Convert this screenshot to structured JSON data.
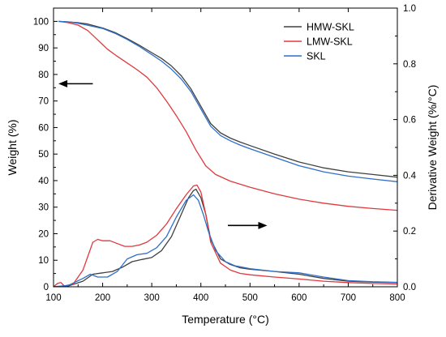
{
  "chart_data": {
    "type": "line",
    "title": "",
    "xlabel": "Temperature (°C)",
    "ylabel": "Weight (%)",
    "y2label": "Derivative Weight (%/°C)",
    "xlim": [
      100,
      800
    ],
    "ylim": [
      0,
      105
    ],
    "y2lim": [
      0,
      1.0
    ],
    "xticks": [
      100,
      200,
      300,
      400,
      500,
      600,
      700,
      800
    ],
    "yticks": [
      0,
      10,
      20,
      30,
      40,
      50,
      60,
      70,
      80,
      90,
      100
    ],
    "y2ticks": [
      0.0,
      0.2,
      0.4,
      0.6,
      0.8,
      1.0
    ],
    "xtick_labels": [
      "100",
      "200",
      "300",
      "400",
      "500",
      "600",
      "700",
      "800"
    ],
    "ytick_labels": [
      "0",
      "10",
      "20",
      "30",
      "40",
      "50",
      "60",
      "70",
      "80",
      "90",
      "100"
    ],
    "y2tick_labels": [
      "0.0",
      "0.2",
      "0.4",
      "0.6",
      "0.8",
      "1.0"
    ],
    "grid": false,
    "legend_position": "top-right",
    "legend": [
      {
        "name": "HMW-SKL",
        "color": "#404040"
      },
      {
        "name": "LMW-SKL",
        "color": "#e0393e"
      },
      {
        "name": "SKL",
        "color": "#2f6fc9"
      }
    ],
    "annotations": [
      {
        "type": "arrow",
        "direction": "left",
        "meaning": "weight curves read on left axis",
        "from": [
          180,
          76.5
        ],
        "to": [
          110,
          76.5
        ]
      },
      {
        "type": "arrow",
        "direction": "right",
        "meaning": "derivative curves read on right axis",
        "from": [
          455,
          0.22
        ],
        "to": [
          535,
          0.22
        ]
      }
    ],
    "series": [
      {
        "name": "HMW-SKL",
        "kind": "weight",
        "axis": "left",
        "color": "#404040",
        "x": [
          110,
          130,
          150,
          170,
          200,
          225,
          250,
          275,
          300,
          320,
          340,
          360,
          380,
          400,
          420,
          440,
          460,
          480,
          500,
          550,
          600,
          650,
          700,
          750,
          800
        ],
        "y": [
          100,
          99.8,
          99.5,
          99,
          97.5,
          95.8,
          93.5,
          91,
          88.2,
          86,
          83.2,
          79.5,
          74.5,
          68,
          61.5,
          58,
          56,
          54.5,
          53.2,
          50,
          47,
          44.8,
          43.3,
          42.3,
          41.3
        ]
      },
      {
        "name": "LMW-SKL",
        "kind": "weight",
        "axis": "left",
        "color": "#e0393e",
        "x": [
          110,
          130,
          150,
          170,
          190,
          210,
          230,
          250,
          270,
          290,
          310,
          330,
          350,
          370,
          390,
          410,
          430,
          460,
          500,
          550,
          600,
          650,
          700,
          750,
          800
        ],
        "y": [
          100,
          99.5,
          98.6,
          96.5,
          93,
          89.5,
          86.8,
          84.3,
          81.8,
          79,
          75,
          70,
          64.5,
          58.5,
          51.5,
          45.5,
          42.3,
          39.8,
          37.5,
          35,
          33,
          31.5,
          30.3,
          29.5,
          28.8
        ]
      },
      {
        "name": "SKL",
        "kind": "weight",
        "axis": "left",
        "color": "#2f6fc9",
        "x": [
          110,
          130,
          150,
          170,
          200,
          225,
          250,
          275,
          300,
          320,
          340,
          360,
          380,
          400,
          420,
          440,
          460,
          480,
          500,
          550,
          600,
          650,
          700,
          750,
          800
        ],
        "y": [
          100,
          99.8,
          99.3,
          98.5,
          97.3,
          95.5,
          93.2,
          90.5,
          87.5,
          85,
          82,
          78.3,
          73.5,
          67,
          60.5,
          57,
          55,
          53.4,
          52,
          48.8,
          45.6,
          43.3,
          41.7,
          40.6,
          39.6
        ]
      },
      {
        "name": "HMW-SKL",
        "kind": "derivative",
        "axis": "right",
        "color": "#404040",
        "x": [
          100,
          130,
          160,
          180,
          200,
          220,
          240,
          260,
          280,
          300,
          320,
          340,
          360,
          375,
          385,
          390,
          400,
          410,
          420,
          440,
          460,
          480,
          500,
          550,
          600,
          650,
          700,
          750,
          800
        ],
        "y": [
          0,
          0.003,
          0.02,
          0.045,
          0.05,
          0.055,
          0.07,
          0.09,
          0.098,
          0.105,
          0.13,
          0.18,
          0.26,
          0.32,
          0.345,
          0.35,
          0.32,
          0.26,
          0.17,
          0.1,
          0.08,
          0.068,
          0.063,
          0.055,
          0.045,
          0.03,
          0.02,
          0.017,
          0.015
        ]
      },
      {
        "name": "LMW-SKL",
        "kind": "derivative",
        "axis": "right",
        "color": "#e0393e",
        "x": [
          100,
          108,
          115,
          122,
          140,
          160,
          180,
          190,
          200,
          215,
          230,
          245,
          260,
          275,
          290,
          310,
          330,
          350,
          370,
          385,
          392,
          400,
          410,
          420,
          440,
          460,
          480,
          500,
          550,
          600,
          650,
          700,
          750,
          800
        ],
        "y": [
          0,
          0.012,
          0.015,
          0.003,
          0.01,
          0.06,
          0.16,
          0.17,
          0.165,
          0.165,
          0.155,
          0.145,
          0.145,
          0.15,
          0.16,
          0.185,
          0.225,
          0.28,
          0.33,
          0.362,
          0.365,
          0.34,
          0.26,
          0.16,
          0.085,
          0.06,
          0.048,
          0.043,
          0.035,
          0.028,
          0.02,
          0.015,
          0.012,
          0.01
        ]
      },
      {
        "name": "SKL",
        "kind": "derivative",
        "axis": "right",
        "color": "#2f6fc9",
        "x": [
          100,
          130,
          160,
          175,
          190,
          210,
          230,
          250,
          270,
          290,
          310,
          330,
          350,
          370,
          385,
          395,
          405,
          415,
          430,
          450,
          470,
          500,
          550,
          600,
          650,
          700,
          750,
          800
        ],
        "y": [
          0,
          0.005,
          0.03,
          0.045,
          0.035,
          0.035,
          0.055,
          0.1,
          0.115,
          0.12,
          0.14,
          0.18,
          0.25,
          0.31,
          0.33,
          0.31,
          0.26,
          0.2,
          0.13,
          0.09,
          0.075,
          0.065,
          0.055,
          0.05,
          0.035,
          0.022,
          0.018,
          0.016
        ]
      }
    ]
  }
}
